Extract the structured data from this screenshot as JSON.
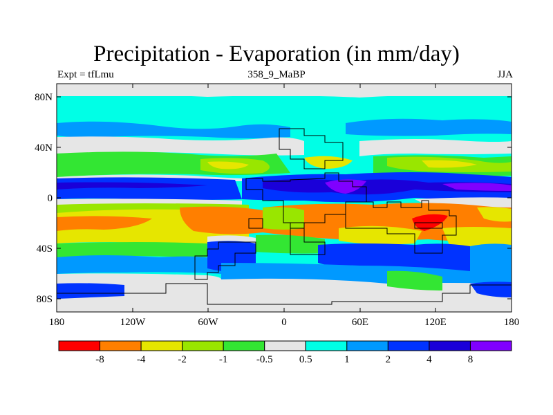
{
  "header": {
    "title": "Precipitation - Evaporation (in mm/day)",
    "left": "Expt = tfLmu",
    "center": "358_9_MaBP",
    "right": "JJA"
  },
  "map": {
    "y_ticks": [
      "80N",
      "40N",
      "0",
      "40S",
      "80S"
    ],
    "x_ticks": [
      "180",
      "120W",
      "60W",
      "0",
      "60E",
      "120E",
      "180"
    ],
    "lon_range": [
      -180,
      180
    ],
    "lat_range": [
      -90,
      90
    ]
  },
  "colorbar": {
    "colors": [
      "#ff0000",
      "#ff7f00",
      "#e6e600",
      "#99e600",
      "#33e633",
      "#e6e6e6",
      "#00ffe6",
      "#0099ff",
      "#0033ff",
      "#1a00d9",
      "#8000ff"
    ],
    "labels": [
      "-8",
      "-4",
      "-2",
      "-1",
      "-0.5",
      "0.5",
      "1",
      "2",
      "4",
      "8"
    ]
  },
  "palette": {
    "ocean_cyan": "#00ffe6",
    "light_blue": "#0099ff",
    "blue": "#0033ff",
    "dark_blue": "#1a00d9",
    "violet": "#8000ff",
    "gray": "#e6e6e6",
    "green": "#33e633",
    "lime": "#99e600",
    "yellow": "#e6e600",
    "orange": "#ff7f00",
    "red": "#ff0000"
  }
}
